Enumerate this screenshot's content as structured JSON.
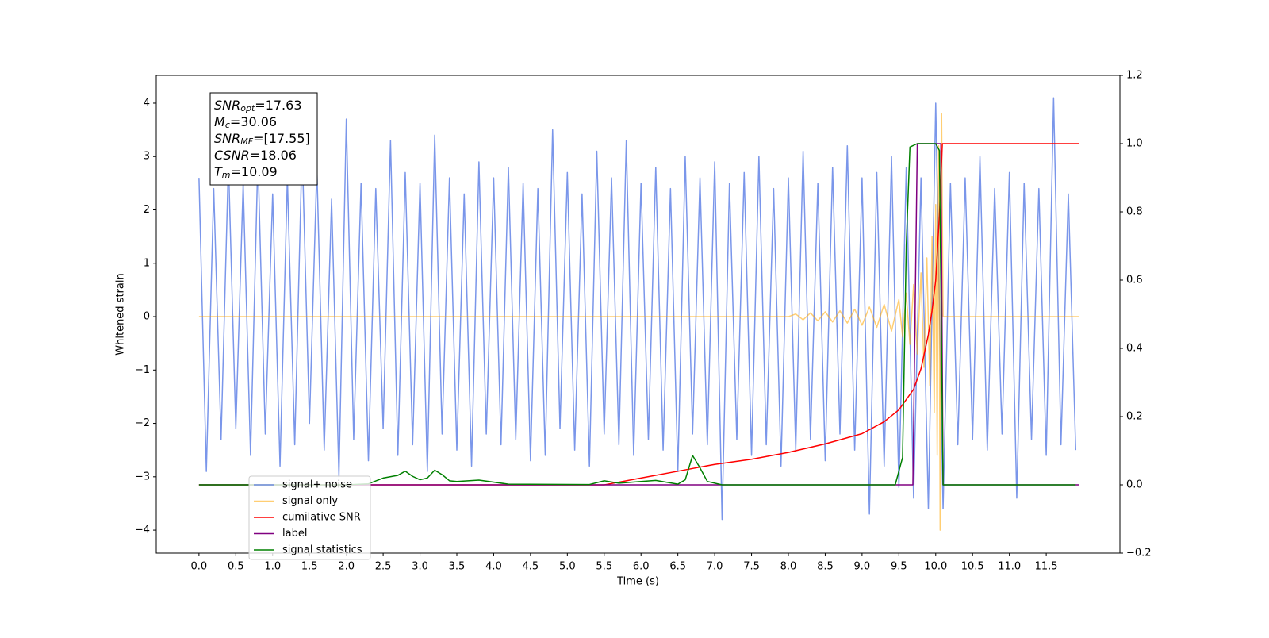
{
  "chart_data": {
    "type": "line",
    "xlabel": "Time (s)",
    "ylabel": "Whitened strain",
    "xlim": [
      -0.58,
      12.5
    ],
    "ylim": [
      -4.43,
      4.52
    ],
    "y2lim": [
      -0.2,
      1.2
    ],
    "xticks": [
      {
        "value": 0,
        "label": "0.0"
      },
      0.5,
      {
        "value": 1,
        "label": "1.0"
      },
      1.5,
      {
        "value": 2,
        "label": "2.0"
      },
      2.5,
      {
        "value": 3,
        "label": "3.0"
      },
      3.5,
      {
        "value": 4,
        "label": "4.0"
      },
      4.5,
      {
        "value": 5,
        "label": "5.0"
      },
      5.5,
      {
        "value": 6,
        "label": "6.0"
      },
      6.5,
      {
        "value": 7,
        "label": "7.0"
      },
      7.5,
      {
        "value": 8,
        "label": "8.0"
      },
      8.5,
      {
        "value": 9,
        "label": "9.0"
      },
      9.5,
      {
        "value": 10,
        "label": "10.0"
      },
      10.5,
      {
        "value": 11,
        "label": "11.0"
      },
      11.5
    ],
    "yticks": [
      {
        "value": -4,
        "label": "−4"
      },
      {
        "value": -3,
        "label": "−3"
      },
      {
        "value": -2,
        "label": "−2"
      },
      {
        "value": -1,
        "label": "−1"
      },
      0,
      1,
      2,
      3,
      4
    ],
    "y2ticks": [
      {
        "value": -0.2,
        "label": "−0.2"
      },
      {
        "value": 0,
        "label": "0.0"
      },
      0.2,
      0.4,
      0.6,
      0.8,
      {
        "value": 1,
        "label": "1.0"
      },
      1.2
    ],
    "legend": "lower left",
    "annotation": [
      {
        "math": "SNR",
        "sub": "opt",
        "text": "=17.63"
      },
      {
        "math": "M",
        "sub": "c",
        "text": "=30.06"
      },
      {
        "math": "SNR",
        "sub": "MF",
        "text": "=[17.55]"
      },
      {
        "math": "CSNR",
        "text": "=18.06"
      },
      {
        "math": "T",
        "sub": "m",
        "text": "=10.09"
      }
    ],
    "series": [
      {
        "name": "signal+ noise",
        "color": "#4169e1",
        "alpha": 0.7,
        "x": [
          0.0,
          0.1,
          0.2,
          0.3,
          0.4,
          0.5,
          0.6,
          0.7,
          0.8,
          0.9,
          1.0,
          1.1,
          1.2,
          1.3,
          1.4,
          1.5,
          1.6,
          1.7,
          1.8,
          1.9,
          2.0,
          2.1,
          2.2,
          2.3,
          2.4,
          2.5,
          2.6,
          2.7,
          2.8,
          2.9,
          3.0,
          3.1,
          3.2,
          3.3,
          3.4,
          3.5,
          3.6,
          3.7,
          3.8,
          3.9,
          4.0,
          4.1,
          4.2,
          4.3,
          4.4,
          4.5,
          4.6,
          4.7,
          4.8,
          4.9,
          5.0,
          5.1,
          5.2,
          5.3,
          5.4,
          5.5,
          5.6,
          5.7,
          5.8,
          5.9,
          6.0,
          6.1,
          6.2,
          6.3,
          6.4,
          6.5,
          6.6,
          6.7,
          6.8,
          6.9,
          7.0,
          7.1,
          7.2,
          7.3,
          7.4,
          7.5,
          7.6,
          7.7,
          7.8,
          7.9,
          8.0,
          8.1,
          8.2,
          8.3,
          8.4,
          8.5,
          8.6,
          8.7,
          8.8,
          8.9,
          9.0,
          9.1,
          9.2,
          9.3,
          9.4,
          9.5,
          9.6,
          9.7,
          9.8,
          9.9,
          10.0,
          10.1,
          10.2,
          10.3,
          10.4,
          10.5,
          10.6,
          10.7,
          10.8,
          10.9,
          11.0,
          11.1,
          11.2,
          11.3,
          11.4,
          11.5,
          11.6,
          11.7,
          11.8,
          11.9
        ],
        "values": [
          2.6,
          -2.9,
          2.4,
          -2.3,
          2.9,
          -2.1,
          2.5,
          -2.6,
          3.0,
          -2.2,
          2.3,
          -2.8,
          2.6,
          -2.4,
          3.2,
          -2.0,
          2.8,
          -2.5,
          2.2,
          -3.0,
          3.7,
          -2.3,
          2.5,
          -2.7,
          2.4,
          -2.1,
          3.3,
          -2.6,
          2.7,
          -2.4,
          2.5,
          -2.9,
          3.4,
          -2.2,
          2.6,
          -2.5,
          2.3,
          -2.8,
          2.9,
          -2.2,
          2.6,
          -2.4,
          2.8,
          -2.3,
          2.5,
          -2.7,
          2.4,
          -2.6,
          3.5,
          -2.1,
          2.7,
          -2.5,
          2.3,
          -2.8,
          3.1,
          -2.2,
          2.6,
          -2.4,
          3.3,
          -2.6,
          2.5,
          -2.3,
          2.8,
          -2.5,
          2.4,
          -2.9,
          3.0,
          -2.2,
          2.6,
          -2.4,
          2.9,
          -3.8,
          2.5,
          -2.3,
          2.7,
          -2.6,
          3.0,
          -2.4,
          2.4,
          -2.8,
          2.6,
          -2.5,
          3.1,
          -2.3,
          2.5,
          -2.7,
          2.8,
          -2.2,
          3.2,
          -2.5,
          2.6,
          -3.7,
          2.7,
          -2.8,
          3.0,
          -3.2,
          2.8,
          -3.4,
          2.6,
          -3.6,
          4.0,
          -3.6,
          2.5,
          -2.4,
          2.6,
          -2.3,
          3.0,
          -2.5,
          2.4,
          -2.2,
          2.7,
          -3.4,
          2.5,
          -2.3,
          2.4,
          -2.6,
          4.1,
          -2.4,
          2.3,
          -2.5
        ]
      },
      {
        "name": "signal only",
        "color": "#ffa500",
        "alpha": 0.55,
        "x": [
          0.0,
          8.0,
          8.1,
          8.2,
          8.3,
          8.4,
          8.5,
          8.6,
          8.7,
          8.8,
          8.9,
          9.0,
          9.1,
          9.2,
          9.3,
          9.4,
          9.5,
          9.55,
          9.6,
          9.65,
          9.7,
          9.75,
          9.8,
          9.84,
          9.88,
          9.92,
          9.95,
          9.98,
          10.0,
          10.02,
          10.04,
          10.06,
          10.08,
          10.1,
          11.95
        ],
        "values": [
          0,
          0,
          0.05,
          -0.06,
          0.07,
          -0.08,
          0.09,
          -0.1,
          0.11,
          -0.12,
          0.14,
          -0.16,
          0.18,
          -0.2,
          0.23,
          -0.27,
          0.32,
          -0.38,
          0.44,
          -0.52,
          0.6,
          -0.7,
          0.82,
          -0.95,
          1.1,
          -1.3,
          1.5,
          -1.8,
          2.1,
          -2.6,
          3.2,
          -4.0,
          3.8,
          0,
          0
        ]
      },
      {
        "name": "cumilative SNR",
        "color": "#ff0000",
        "axis": "y2",
        "x": [
          0,
          5.5,
          6.0,
          6.5,
          7.0,
          7.5,
          8.0,
          8.5,
          9.0,
          9.3,
          9.5,
          9.7,
          9.8,
          9.9,
          9.95,
          10.0,
          10.05,
          10.09,
          11.95
        ],
        "values": [
          0,
          0,
          0.02,
          0.04,
          0.06,
          0.075,
          0.095,
          0.12,
          0.15,
          0.185,
          0.22,
          0.28,
          0.34,
          0.44,
          0.51,
          0.6,
          0.79,
          1.0,
          1.0
        ]
      },
      {
        "name": "label",
        "color": "#800080",
        "axis": "y2",
        "x": [
          0,
          9.69,
          9.75,
          10.07,
          10.1,
          11.95
        ],
        "values": [
          0,
          0,
          1,
          1,
          0,
          0
        ]
      },
      {
        "name": "signal statistics",
        "color": "#008000",
        "axis": "y2",
        "x": [
          0,
          2.0,
          2.3,
          2.5,
          2.7,
          2.8,
          2.9,
          3.0,
          3.1,
          3.2,
          3.3,
          3.4,
          3.5,
          3.8,
          4.2,
          5.3,
          5.5,
          5.7,
          6.0,
          6.2,
          6.5,
          6.6,
          6.7,
          6.8,
          6.9,
          7.1,
          7.5,
          9.45,
          9.55,
          9.6,
          9.65,
          9.75,
          10.0,
          10.05,
          10.1,
          11.9
        ],
        "values": [
          0,
          0,
          0.003,
          0.02,
          0.028,
          0.04,
          0.025,
          0.015,
          0.02,
          0.043,
          0.03,
          0.012,
          0.01,
          0.014,
          0.002,
          0.001,
          0.012,
          0.005,
          0.01,
          0.013,
          0.002,
          0.015,
          0.086,
          0.05,
          0.01,
          0,
          0,
          0,
          0.08,
          0.7,
          0.99,
          1.0,
          1.0,
          0.98,
          0,
          0
        ]
      }
    ]
  }
}
